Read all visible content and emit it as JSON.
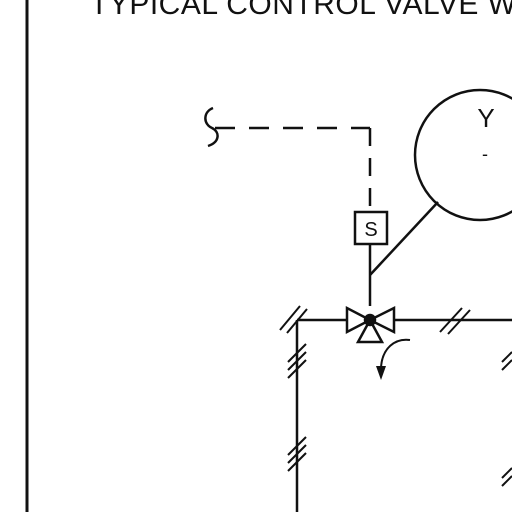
{
  "title": "TYPICAL CONTROL VALVE W",
  "instrument": {
    "bubble_letter": "Y",
    "bubble_sub": "-",
    "solenoid_label": "S"
  },
  "colors": {
    "line": "#111111",
    "background": "#ffffff"
  },
  "icons": [
    "signal-break-icon",
    "three-way-valve-icon",
    "flow-direction-arrow-icon",
    "line-tick-marks-icon"
  ]
}
